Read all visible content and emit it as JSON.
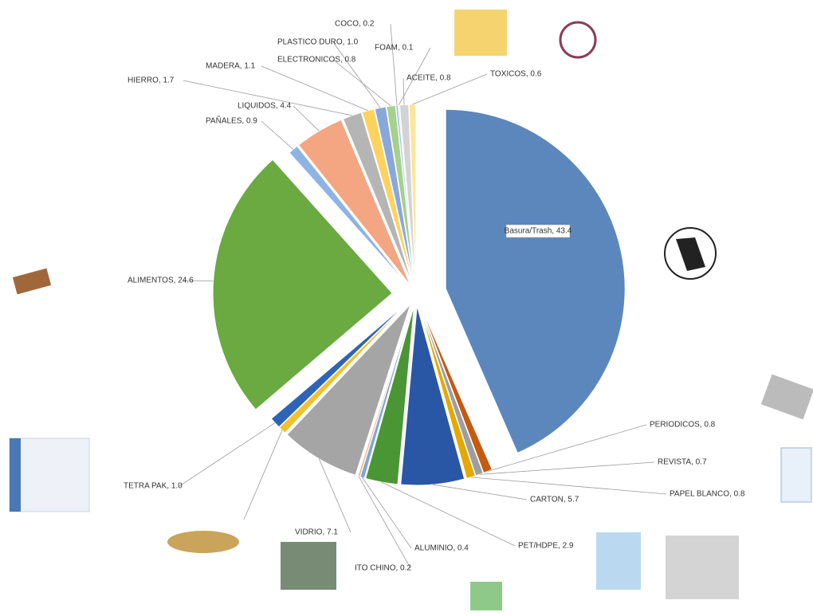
{
  "chart_data": {
    "type": "pie",
    "categories": [
      "Basura/Trash",
      "PERIODICOS",
      "REVISTA",
      "PAPEL BLANCO",
      "CARTON",
      "PET/HDPE",
      "ALUMINIO",
      "ITO CHINO",
      "VIDRIO",
      null,
      "TETRA PAK",
      "ALIMENTOS",
      "PAÑALES",
      "LIQUIDOS",
      "HIERRO",
      "MADERA",
      "PLASTICO DURO",
      "ELECTRONICOS",
      "COCO",
      "FOAM",
      "ACEITE",
      "TOXICOS"
    ],
    "values": [
      43.4,
      0.8,
      0.7,
      0.8,
      5.7,
      2.9,
      0.4,
      0.2,
      7.1,
      0.7,
      1.0,
      24.6,
      0.9,
      4.4,
      1.7,
      1.1,
      1.0,
      0.8,
      0.2,
      0.1,
      0.8,
      0.6
    ],
    "value_labels": [
      "Basura/Trash, 43.4",
      "PERIODICOS, 0.8",
      "REVISTA, 0.7",
      "PAPEL BLANCO, 0.8",
      "CARTON, 5.7",
      "PET/HDPE, 2.9",
      "ALUMINIO, 0.4",
      "ITO CHINO, 0.2",
      "VIDRIO, 7.1",
      null,
      "TETRA PAK, 1.0",
      "ALIMENTOS, 24.6",
      "PAÑALES, 0.9",
      "LIQUIDOS, 4.4",
      "HIERRO, 1.7",
      "MADERA, 1.1",
      "PLASTICO DURO, 1.0",
      "ELECTRONICOS, 0.8",
      "COCO, 0.2",
      "FOAM, 0.1",
      "ACEITE, 0.8",
      "TOXICOS, 0.6"
    ],
    "colors": [
      "#5b87bd",
      "#c55a11",
      "#9e9e9e",
      "#e6a700",
      "#2a56a6",
      "#4a9634",
      "#7ea6d8",
      "#f0b88c",
      "#a5a5a5",
      "#f2c12e",
      "#2e64b8",
      "#6aaa40",
      "#8db4e2",
      "#f4a582",
      "#b5b5b5",
      "#ffd25e",
      "#8aa7dc",
      "#a6d08c",
      "#9cc3e6",
      "#c8c8c8",
      "#d3d3d3",
      "#ffe59c"
    ]
  }
}
